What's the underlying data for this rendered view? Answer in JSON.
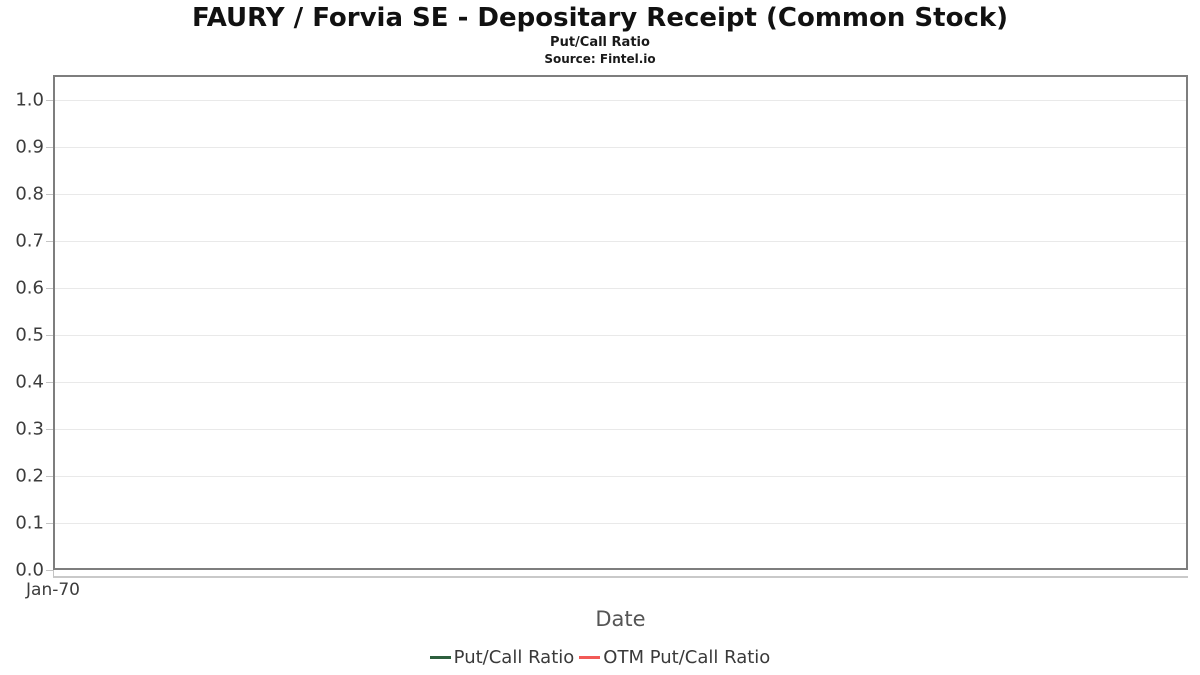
{
  "chart": {
    "title": "FAURY / Forvia SE - Depositary Receipt (Common Stock)",
    "subtitle": "Put/Call Ratio",
    "source": "Source: Fintel.io"
  },
  "chart_data": {
    "type": "line",
    "title": "FAURY / Forvia SE - Depositary Receipt (Common Stock)",
    "subtitle": "Put/Call Ratio",
    "source": "Source: Fintel.io",
    "xlabel": "Date",
    "ylabel": "",
    "x_ticks": [
      "Jan-70"
    ],
    "y_ticks": [
      "0.0",
      "0.1",
      "0.2",
      "0.3",
      "0.4",
      "0.5",
      "0.6",
      "0.7",
      "0.8",
      "0.9",
      "1.0"
    ],
    "ylim": [
      0,
      1.05
    ],
    "grid": "horizontal",
    "legend_position": "bottom-center",
    "series": [
      {
        "name": "Put/Call Ratio",
        "color": "#2d5f3d",
        "x": [],
        "values": []
      },
      {
        "name": "OTM Put/Call Ratio",
        "color": "#f25a57",
        "x": [],
        "values": []
      }
    ],
    "colors": {
      "plot_border": "#7e7e7e",
      "gridline": "#e9e9e9",
      "tick_text": "#3c3c3c",
      "axis_label_text": "#555555"
    }
  }
}
